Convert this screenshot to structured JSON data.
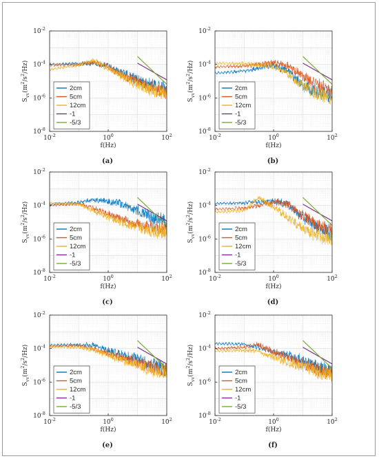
{
  "figure": {
    "panels": [
      {
        "label": "(a)"
      },
      {
        "label": "(b)"
      },
      {
        "label": "(c)"
      },
      {
        "label": "(d)"
      },
      {
        "label": "(e)"
      },
      {
        "label": "(f)"
      }
    ]
  },
  "chart_data": [
    {
      "type": "line",
      "panel": "(a)",
      "xlabel": "f(Hz)",
      "ylabel": "S_vv (m^2/s^2/Hz)",
      "x_scale": "log",
      "y_scale": "log",
      "xlim": [
        0.01,
        100
      ],
      "ylim": [
        1e-08,
        0.01
      ],
      "xticks": [
        "10^-2",
        "10^0",
        "10^2"
      ],
      "yticks": [
        "10^-8",
        "10^-6",
        "10^-4",
        "10^-2"
      ],
      "grid": true,
      "legend_position": "bottom-left",
      "series": [
        {
          "name": "2cm",
          "color": "#0072BD",
          "x": [
            0.01,
            0.1,
            0.3,
            1,
            3,
            10,
            30,
            100
          ],
          "y": [
            0.0001,
            0.00011,
            0.00012,
            8e-05,
            3e-05,
            1.2e-05,
            6e-06,
            4e-06
          ]
        },
        {
          "name": "5cm",
          "color": "#D95319",
          "x": [
            0.01,
            0.1,
            0.3,
            1,
            3,
            10,
            30,
            100
          ],
          "y": [
            9e-05,
            0.0001,
            0.00014,
            7e-05,
            2.5e-05,
            1e-05,
            4e-06,
            2e-06
          ]
        },
        {
          "name": "12cm",
          "color": "#EDB120",
          "x": [
            0.01,
            0.1,
            0.3,
            1,
            3,
            10,
            30,
            100
          ],
          "y": [
            5e-05,
            9e-05,
            0.00018,
            6e-05,
            2e-05,
            6e-06,
            3e-06,
            2e-06
          ]
        },
        {
          "name": "-1",
          "color": "#7E2F8E",
          "x": [
            10,
            100
          ],
          "y": [
            0.00012,
            1.2e-05
          ]
        },
        {
          "name": "-5/3",
          "color": "#77AC30",
          "x": [
            10,
            100
          ],
          "y": [
            0.0003,
            6.5e-06
          ]
        }
      ]
    },
    {
      "type": "line",
      "panel": "(b)",
      "xlabel": "f(Hz)",
      "ylabel": "S_vv (m^2/s^2/Hz)",
      "x_scale": "log",
      "y_scale": "log",
      "xlim": [
        0.01,
        100
      ],
      "ylim": [
        1e-08,
        0.01
      ],
      "xticks": [
        "10^-2",
        "10^0",
        "10^2"
      ],
      "yticks": [
        "10^-8",
        "10^-6",
        "10^-4",
        "10^-2"
      ],
      "grid": true,
      "legend_position": "bottom-left",
      "series": [
        {
          "name": "2cm",
          "color": "#0072BD",
          "x": [
            0.01,
            0.1,
            0.3,
            1,
            3,
            10,
            30,
            100
          ],
          "y": [
            3e-05,
            4e-05,
            6e-05,
            9e-05,
            4e-05,
            6e-06,
            2e-06,
            1.5e-06
          ]
        },
        {
          "name": "5cm",
          "color": "#D95319",
          "x": [
            0.01,
            0.1,
            0.3,
            1,
            3,
            10,
            30,
            100
          ],
          "y": [
            7e-05,
            8e-05,
            0.0001,
            0.00012,
            8e-05,
            2e-05,
            6e-06,
            3e-06
          ]
        },
        {
          "name": "12cm",
          "color": "#EDB120",
          "x": [
            0.01,
            0.1,
            0.3,
            1,
            3,
            10,
            30,
            100
          ],
          "y": [
            0.00012,
            0.00011,
            9e-05,
            8e-05,
            3e-05,
            5e-06,
            1.8e-06,
            1.2e-06
          ]
        },
        {
          "name": "-1",
          "color": "#7E2F8E",
          "x": [
            10,
            100
          ],
          "y": [
            0.00012,
            1.2e-05
          ]
        },
        {
          "name": "-5/3",
          "color": "#77AC30",
          "x": [
            10,
            100
          ],
          "y": [
            0.0003,
            6.5e-06
          ]
        }
      ]
    },
    {
      "type": "line",
      "panel": "(c)",
      "xlabel": "f(Hz)",
      "ylabel": "S_vv (m^2/s^2/Hz)",
      "x_scale": "log",
      "y_scale": "log",
      "xlim": [
        0.01,
        100
      ],
      "ylim": [
        1e-08,
        0.01
      ],
      "xticks": [
        "10^-2",
        "10^0",
        "10^2"
      ],
      "yticks": [
        "10^-8",
        "10^-6",
        "10^-4",
        "10^-2"
      ],
      "grid": true,
      "legend_position": "bottom-left",
      "series": [
        {
          "name": "2cm",
          "color": "#0072BD",
          "x": [
            0.01,
            0.1,
            0.3,
            1,
            3,
            10,
            30,
            100
          ],
          "y": [
            0.00012,
            0.00015,
            0.00022,
            0.00018,
            0.00012,
            5e-05,
            2e-05,
            1e-05
          ]
        },
        {
          "name": "5cm",
          "color": "#D95319",
          "x": [
            0.01,
            0.1,
            0.3,
            1,
            3,
            10,
            30,
            100
          ],
          "y": [
            0.0001,
            0.00013,
            7e-05,
            3e-05,
            1.5e-05,
            8e-06,
            5e-06,
            4e-06
          ]
        },
        {
          "name": "12cm",
          "color": "#EDB120",
          "x": [
            0.01,
            0.1,
            0.3,
            1,
            3,
            10,
            30,
            100
          ],
          "y": [
            0.00014,
            0.00012,
            5e-05,
            2e-05,
            1e-05,
            5e-06,
            3e-06,
            2.5e-06
          ]
        },
        {
          "name": "-1",
          "color": "#7E2F8E",
          "x": [
            10,
            100
          ],
          "y": [
            0.00012,
            1.2e-05
          ]
        },
        {
          "name": "-5/3",
          "color": "#77AC30",
          "x": [
            10,
            100
          ],
          "y": [
            0.0003,
            6.5e-06
          ]
        }
      ]
    },
    {
      "type": "line",
      "panel": "(d)",
      "xlabel": "f(Hz)",
      "ylabel": "S_vv (m^2/s^2/Hz)",
      "x_scale": "log",
      "y_scale": "log",
      "xlim": [
        0.01,
        100
      ],
      "ylim": [
        1e-08,
        0.01
      ],
      "xticks": [
        "10^-2",
        "10^0",
        "10^2"
      ],
      "yticks": [
        "10^-8",
        "10^-6",
        "10^-4",
        "10^-2"
      ],
      "grid": true,
      "legend_position": "bottom-left",
      "series": [
        {
          "name": "2cm",
          "color": "#0072BD",
          "x": [
            0.01,
            0.1,
            0.3,
            1,
            3,
            10,
            30,
            100
          ],
          "y": [
            0.00013,
            0.00014,
            0.00016,
            0.00018,
            0.00012,
            2e-05,
            5e-06,
            2e-06
          ]
        },
        {
          "name": "5cm",
          "color": "#D95319",
          "x": [
            0.01,
            0.1,
            0.3,
            1,
            3,
            10,
            30,
            100
          ],
          "y": [
            6e-05,
            7e-05,
            0.0001,
            0.00016,
            0.00012,
            2.5e-05,
            7e-06,
            3e-06
          ]
        },
        {
          "name": "12cm",
          "color": "#EDB120",
          "x": [
            0.01,
            0.1,
            0.3,
            1,
            3,
            10,
            30,
            100
          ],
          "y": [
            4e-05,
            5e-05,
            0.0003,
            8e-05,
            2e-05,
            4e-06,
            1.5e-06,
            1.1e-06
          ]
        },
        {
          "name": "-1",
          "color": "#7E2F8E",
          "x": [
            10,
            100
          ],
          "y": [
            0.00012,
            1.2e-05
          ]
        },
        {
          "name": "-5/3",
          "color": "#77AC30",
          "x": [
            10,
            100
          ],
          "y": [
            0.0003,
            6.5e-06
          ]
        }
      ]
    },
    {
      "type": "line",
      "panel": "(e)",
      "xlabel": "f(Hz)",
      "ylabel": "S_vv (m^2/s^2/Hz)",
      "x_scale": "log",
      "y_scale": "log",
      "xlim": [
        0.01,
        100
      ],
      "ylim": [
        1e-08,
        0.01
      ],
      "xticks": [
        "10^-2",
        "10^0",
        "10^2"
      ],
      "yticks": [
        "10^-8",
        "10^-6",
        "10^-4",
        "10^-2"
      ],
      "grid": true,
      "legend_position": "bottom-left",
      "series": [
        {
          "name": "2cm",
          "color": "#0072BD",
          "x": [
            0.01,
            0.1,
            0.3,
            1,
            3,
            10,
            30,
            100
          ],
          "y": [
            0.00016,
            0.00017,
            0.00016,
            8e-05,
            4e-05,
            2.5e-05,
            1.2e-05,
            6e-06
          ]
        },
        {
          "name": "5cm",
          "color": "#D95319",
          "x": [
            0.01,
            0.1,
            0.3,
            1,
            3,
            10,
            30,
            100
          ],
          "y": [
            0.00014,
            0.00015,
            0.0001,
            5e-05,
            3e-05,
            1.5e-05,
            8e-06,
            5e-06
          ]
        },
        {
          "name": "12cm",
          "color": "#EDB120",
          "x": [
            0.01,
            0.1,
            0.3,
            1,
            3,
            10,
            30,
            100
          ],
          "y": [
            0.00013,
            0.00012,
            8e-05,
            4e-05,
            2e-05,
            1e-05,
            5e-06,
            4e-06
          ]
        },
        {
          "name": "-1",
          "color": "#7E2F8E",
          "x": [
            10,
            100
          ],
          "y": [
            0.00012,
            1.2e-05
          ]
        },
        {
          "name": "-5/3",
          "color": "#77AC30",
          "x": [
            10,
            100
          ],
          "y": [
            0.0003,
            6.5e-06
          ]
        }
      ]
    },
    {
      "type": "line",
      "panel": "(f)",
      "xlabel": "f(Hz)",
      "ylabel": "S_vv (m^2/s^2/Hz)",
      "x_scale": "log",
      "y_scale": "log",
      "xlim": [
        0.01,
        100
      ],
      "ylim": [
        1e-08,
        0.01
      ],
      "xticks": [
        "10^-2",
        "10^0",
        "10^2"
      ],
      "yticks": [
        "10^-8",
        "10^-6",
        "10^-4",
        "10^-2"
      ],
      "grid": true,
      "legend_position": "bottom-left",
      "series": [
        {
          "name": "2cm",
          "color": "#0072BD",
          "x": [
            0.01,
            0.1,
            0.3,
            1,
            3,
            10,
            30,
            100
          ],
          "y": [
            0.0002,
            0.00018,
            0.00012,
            6e-05,
            4e-05,
            2e-05,
            8e-06,
            4e-06
          ]
        },
        {
          "name": "5cm",
          "color": "#D95319",
          "x": [
            0.01,
            0.1,
            0.3,
            1,
            3,
            10,
            30,
            100
          ],
          "y": [
            0.0001,
            0.00012,
            0.00018,
            6e-05,
            3e-05,
            1.2e-05,
            6e-06,
            3e-06
          ]
        },
        {
          "name": "12cm",
          "color": "#EDB120",
          "x": [
            0.01,
            0.1,
            0.3,
            1,
            3,
            10,
            30,
            100
          ],
          "y": [
            7e-05,
            8e-05,
            7e-05,
            3e-05,
            1.5e-05,
            8e-06,
            4e-06,
            3e-06
          ]
        },
        {
          "name": "-1",
          "color": "#7E2F8E",
          "x": [
            10,
            100
          ],
          "y": [
            0.00012,
            1.2e-05
          ]
        },
        {
          "name": "-5/3",
          "color": "#77AC30",
          "x": [
            10,
            100
          ],
          "y": [
            0.0003,
            6.5e-06
          ]
        }
      ]
    }
  ]
}
